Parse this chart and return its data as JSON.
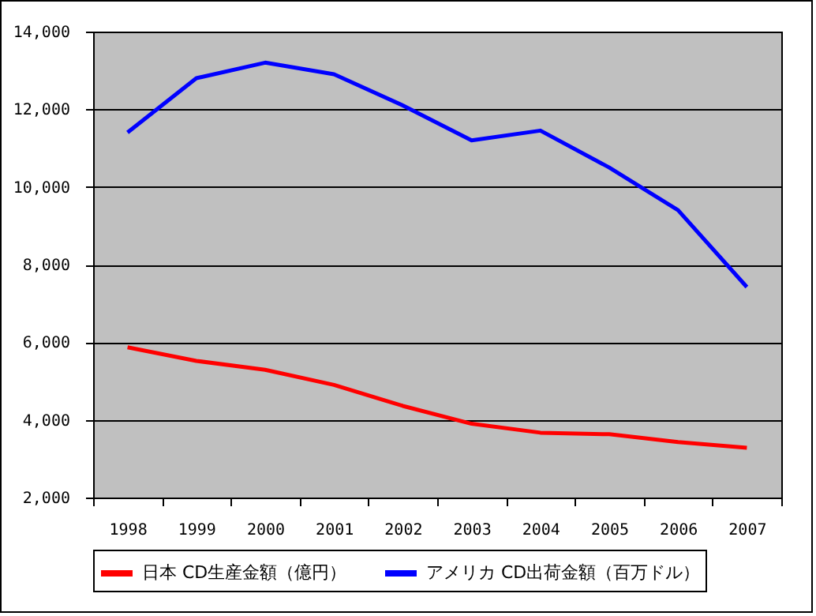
{
  "chart_data": {
    "type": "line",
    "categories": [
      "1998",
      "1999",
      "2000",
      "2001",
      "2002",
      "2003",
      "2004",
      "2005",
      "2006",
      "2007"
    ],
    "series": [
      {
        "name": "日本 CD生産金額（億円）",
        "color": "#ff0000",
        "values": [
          5870,
          5520,
          5290,
          4900,
          4360,
          3900,
          3670,
          3630,
          3430,
          3280
        ]
      },
      {
        "name": "アメリカ CD出荷金額（百万ドル）",
        "color": "#0000ff",
        "values": [
          11400,
          12800,
          13200,
          12900,
          12100,
          11200,
          11450,
          10500,
          9400,
          7420
        ]
      }
    ],
    "ylim": [
      2000,
      14000
    ],
    "yticks": [
      {
        "value": 2000,
        "label": "2,000"
      },
      {
        "value": 4000,
        "label": "4,000"
      },
      {
        "value": 6000,
        "label": "6,000"
      },
      {
        "value": 8000,
        "label": "8,000"
      },
      {
        "value": 10000,
        "label": "10,000"
      },
      {
        "value": 12000,
        "label": "12,000"
      },
      {
        "value": 14000,
        "label": "14,000"
      }
    ],
    "grid": "y",
    "legend": "bottom",
    "marker": "none",
    "line_style": "solid"
  }
}
